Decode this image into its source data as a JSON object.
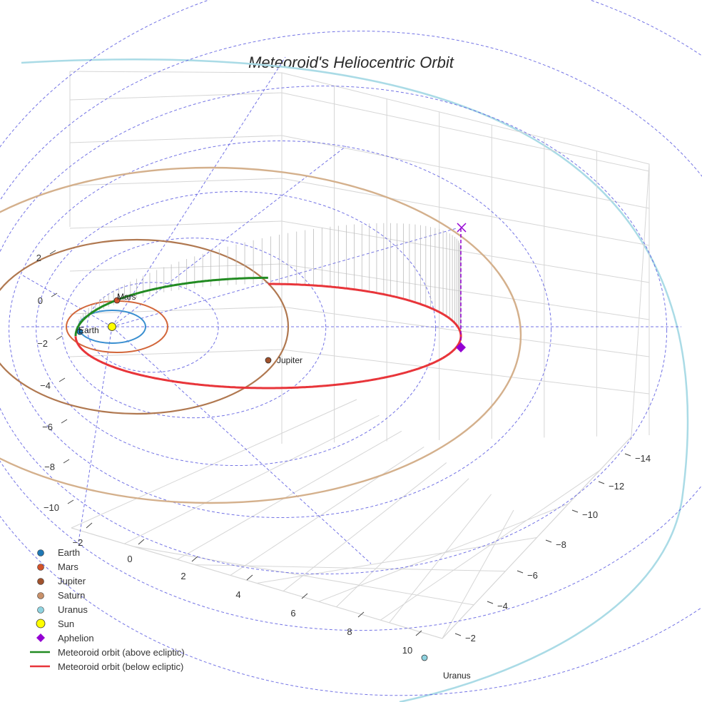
{
  "chart_data": {
    "type": "scatter3d",
    "title": "Meteoroid's Heliocentric Orbit",
    "axes": {
      "x": {
        "ticks": [
          "−2",
          "0",
          "2",
          "4",
          "6",
          "8",
          "10"
        ],
        "title": ""
      },
      "y": {
        "ticks": [
          "−2",
          "−4",
          "−6",
          "−8",
          "−10",
          "−12",
          "−14"
        ],
        "title": ""
      },
      "z": {
        "ticks": [
          "2",
          "0",
          "−2",
          "−4",
          "−6",
          "−8",
          "−10"
        ],
        "title": ""
      }
    },
    "planets": [
      {
        "name": "Earth",
        "semi_major_axis_au": 1.0,
        "label_shown": true,
        "color": "#1f77b4"
      },
      {
        "name": "Mars",
        "semi_major_axis_au": 1.52,
        "label_shown": true,
        "color": "#d2522a"
      },
      {
        "name": "Jupiter",
        "semi_major_axis_au": 5.2,
        "label_shown": true,
        "color": "#b07850"
      },
      {
        "name": "Saturn",
        "semi_major_axis_au": 9.58,
        "label_shown": false,
        "color": "#d9b38c"
      },
      {
        "name": "Uranus",
        "semi_major_axis_au": 19.2,
        "label_shown": true,
        "color": "#8fd3e0"
      }
    ],
    "sun": {
      "name": "Sun",
      "color": "#ffff00"
    },
    "aphelion": {
      "name": "Aphelion",
      "color": "#9400d3"
    },
    "meteoroid": {
      "above_ecliptic_name": "Meteoroid orbit (above ecliptic)",
      "below_ecliptic_name": "Meteoroid orbit (below ecliptic)",
      "above_color": "#228b22",
      "below_color": "#e8353a"
    },
    "grid": true,
    "legend_position": "bottom-left"
  },
  "legend": [
    {
      "label": "Earth",
      "symbol": "dot",
      "color": "#1f77b4"
    },
    {
      "label": "Mars",
      "symbol": "dot",
      "color": "#d2522a"
    },
    {
      "label": "Jupiter",
      "symbol": "dot",
      "color": "#a0522d"
    },
    {
      "label": "Saturn",
      "symbol": "dot",
      "color": "#c8906a"
    },
    {
      "label": "Uranus",
      "symbol": "dot",
      "color": "#8fd3e0"
    },
    {
      "label": "Sun",
      "symbol": "big-dot",
      "color": "#ffff00"
    },
    {
      "label": "Aphelion",
      "symbol": "diamond",
      "color": "#9400d3"
    },
    {
      "label": "Meteoroid orbit (above ecliptic)",
      "symbol": "line",
      "color": "#228b22"
    },
    {
      "label": "Meteoroid orbit (below ecliptic)",
      "symbol": "line",
      "color": "#e8353a"
    }
  ]
}
